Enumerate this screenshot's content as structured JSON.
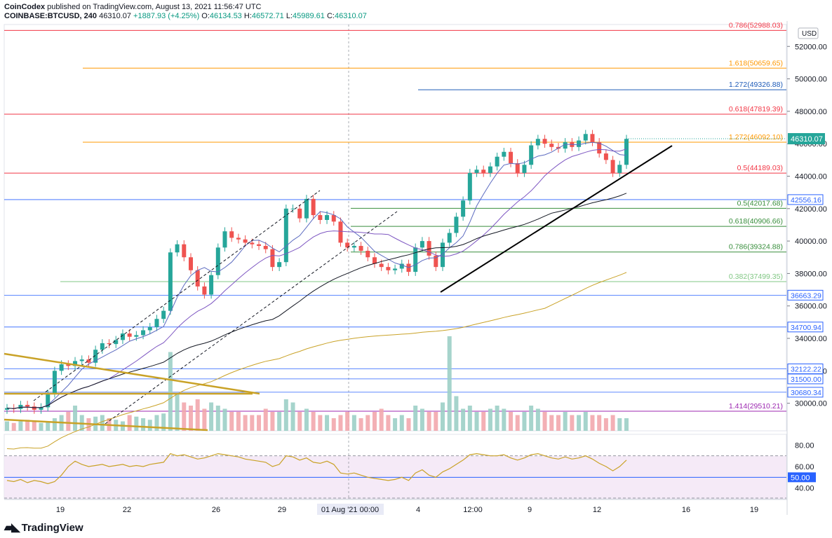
{
  "header": {
    "publisher": "CoinCodex",
    "published_text": "published on TradingView.com, August 13, 2021 11:56:47 UTC",
    "symbol": "COINBASE:BTCUSD, 240",
    "last": "46310.07",
    "change": "+1887.93 (+4.25%)",
    "o_label": "O:",
    "o": "46134.53",
    "h_label": "H:",
    "h": "46572.71",
    "l_label": "L:",
    "l": "45989.61",
    "c_label": "C:",
    "c": "46310.07"
  },
  "footer": {
    "brand": "TradingView"
  },
  "chart_data": {
    "type": "line",
    "currency": "USD",
    "title": "",
    "xlabel": "",
    "ylabel": "",
    "price_axis_ticks": [
      30000,
      32000,
      34000,
      36000,
      38000,
      40000,
      42000,
      44000,
      46000,
      48000,
      50000,
      52000
    ],
    "rsi_axis_ticks": [
      40,
      50,
      60,
      80
    ],
    "x_ticks": [
      "19",
      "22",
      "26",
      "29",
      "01 Aug '21",
      "4",
      "12:00",
      "9",
      "12",
      "16",
      "19"
    ],
    "crosshair_time_label": "01 Aug '21  00:00",
    "fib_levels": [
      {
        "label": "0.786",
        "value": 52988.03,
        "color": "#f23645"
      },
      {
        "label": "1.618",
        "value": 50659.65,
        "color": "#ff9800"
      },
      {
        "label": "1.272",
        "value": 49326.88,
        "color": "#1e5bb8"
      },
      {
        "label": "0.618",
        "value": 47819.39,
        "color": "#f23645"
      },
      {
        "label": "1.272",
        "value": 46092.1,
        "color": "#ff9800"
      },
      {
        "label": "0.5",
        "value": 44189.03,
        "color": "#f23645"
      },
      {
        "label": "0.5",
        "value": 42017.68,
        "color": "#388e3c"
      },
      {
        "label": "0.618",
        "value": 40906.66,
        "color": "#388e3c"
      },
      {
        "label": "0.786",
        "value": 39324.88,
        "color": "#388e3c"
      },
      {
        "label": "0.382",
        "value": 37499.35,
        "color": "#81c784"
      },
      {
        "label": "1.414",
        "value": 29510.21,
        "color": "#9c27b0"
      }
    ],
    "horizontal_levels": [
      {
        "value": 42556.16,
        "label": "42556.16"
      },
      {
        "value": 36663.29,
        "label": "36663.29"
      },
      {
        "value": 34700.94,
        "label": "34700.94"
      },
      {
        "value": 32122.22,
        "label": "32122.22"
      },
      {
        "value": 31500.0,
        "label": "31500.00"
      },
      {
        "value": 30680.34,
        "label": "30680.34"
      }
    ],
    "last_price": {
      "value": 46310.07,
      "label": "46310.07"
    },
    "rsi_marker": {
      "value": 50,
      "label": "50.00"
    },
    "close_series": [
      29700,
      29650,
      29900,
      29800,
      29600,
      29750,
      30600,
      32000,
      32400,
      32300,
      32600,
      32700,
      32500,
      33300,
      33700,
      33650,
      33900,
      34300,
      34100,
      34200,
      34500,
      34700,
      35200,
      35700,
      39300,
      39800,
      39000,
      38200,
      37200,
      36700,
      37900,
      39600,
      40600,
      40200,
      40100,
      39900,
      39800,
      39700,
      39500,
      38400,
      38700,
      42000,
      42000,
      41400,
      42600,
      41600,
      41300,
      41600,
      41200,
      39900,
      39600,
      39700,
      39400,
      39000,
      38600,
      38400,
      38200,
      38300,
      38600,
      38100,
      39600,
      40000,
      39100,
      38400,
      39900,
      40500,
      41500,
      42500,
      44200,
      44400,
      44200,
      44600,
      45200,
      45500,
      44800,
      44200,
      44700,
      45900,
      46300,
      46000,
      45800,
      45700,
      46100,
      45800,
      46200,
      46600,
      46100,
      45400,
      45000,
      44200,
      44700,
      46300
    ],
    "volume_series": [
      0.3,
      0.25,
      0.3,
      0.35,
      0.3,
      0.25,
      0.3,
      0.4,
      0.5,
      0.6,
      0.8,
      0.5,
      0.4,
      0.45,
      0.5,
      0.4,
      0.35,
      0.3,
      0.5,
      0.45,
      0.4,
      0.35,
      0.5,
      0.55,
      2.5,
      1.2,
      0.9,
      0.8,
      1.0,
      0.7,
      0.9,
      0.8,
      0.7,
      0.6,
      0.6,
      0.5,
      0.5,
      0.5,
      0.7,
      0.6,
      0.6,
      1.0,
      0.9,
      0.6,
      0.7,
      0.6,
      0.5,
      0.5,
      0.4,
      0.5,
      0.6,
      0.5,
      0.4,
      0.5,
      0.6,
      0.7,
      0.5,
      0.4,
      0.5,
      0.4,
      0.8,
      0.7,
      0.6,
      0.6,
      0.9,
      3.0,
      1.1,
      0.7,
      0.8,
      0.6,
      0.6,
      0.7,
      0.8,
      0.7,
      0.6,
      0.5,
      0.6,
      0.8,
      0.7,
      0.6,
      0.5,
      0.5,
      0.6,
      0.5,
      0.5,
      0.6,
      0.5,
      0.5,
      0.4,
      0.5,
      0.4,
      0.4
    ],
    "rsi_series": [
      47,
      46,
      48,
      45,
      47,
      46,
      44,
      46,
      52,
      60,
      65,
      62,
      60,
      61,
      62,
      60,
      61,
      62,
      60,
      61,
      60,
      62,
      63,
      64,
      72,
      70,
      71,
      69,
      67,
      68,
      70,
      72,
      71,
      70,
      69,
      67,
      66,
      65,
      64,
      60,
      62,
      70,
      69,
      66,
      68,
      64,
      63,
      65,
      62,
      54,
      53,
      54,
      52,
      50,
      49,
      48,
      47,
      48,
      50,
      47,
      54,
      57,
      52,
      50,
      55,
      58,
      62,
      66,
      71,
      72,
      71,
      70,
      70,
      71,
      68,
      66,
      68,
      71,
      72,
      70,
      68,
      67,
      69,
      67,
      68,
      70,
      67,
      63,
      60,
      56,
      60,
      66
    ]
  }
}
